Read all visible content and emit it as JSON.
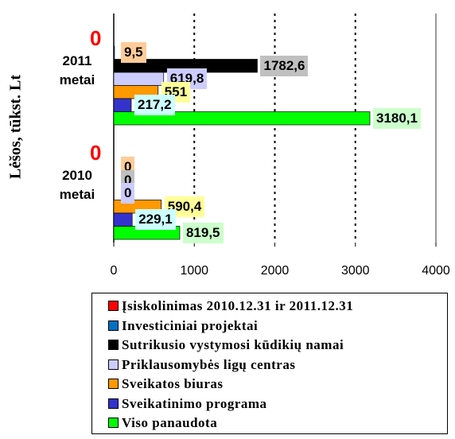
{
  "chart_data": {
    "type": "hbar",
    "y_label": "Lėšos, tūkst. Lt",
    "categories": [
      "2011 metai",
      "2010 metai"
    ],
    "xlim": [
      0,
      4000
    ],
    "xticks": [
      0,
      1000,
      2000,
      3000,
      4000
    ],
    "grid": true,
    "series": [
      {
        "name": "Įsiskolinimas 2010.12.31 ir 2011.12.31",
        "color": "#ff0000",
        "label_color": "#ff0000",
        "values": [
          0,
          0
        ],
        "value_labels": [
          "0",
          "0"
        ]
      },
      {
        "name": "Investiciniai projektai",
        "color": "#0070c0",
        "label_background": "#ffcc99",
        "values": [
          9.5,
          0
        ],
        "value_labels": [
          "9,5",
          "0"
        ]
      },
      {
        "name": "Sutrikusio vystymosi kūdikių namai",
        "color": "#000000",
        "label_background": "#c0c0c0",
        "values": [
          1782.6,
          0
        ],
        "value_labels": [
          "1782,6",
          "0"
        ]
      },
      {
        "name": "Priklausomybės ligų centras",
        "color": "#ccccff",
        "label_background": "#ccccff",
        "values": [
          619.8,
          0
        ],
        "value_labels": [
          "619,8",
          "0"
        ]
      },
      {
        "name": "Sveikatos biuras",
        "color": "#ff9900",
        "label_background": "#ffff99",
        "values": [
          551,
          590.4
        ],
        "value_labels": [
          "551",
          "590,4"
        ]
      },
      {
        "name": "Sveikatinimo programa",
        "color": "#3333cc",
        "label_background": "#ccffff",
        "values": [
          217.2,
          229.1
        ],
        "value_labels": [
          "217,2",
          "229,1"
        ]
      },
      {
        "name": "Viso panaudota",
        "color": "#00ff00",
        "label_background": "#ccffcc",
        "values": [
          3180.1,
          819.5
        ],
        "value_labels": [
          "3180,1",
          "819,5"
        ]
      }
    ]
  }
}
